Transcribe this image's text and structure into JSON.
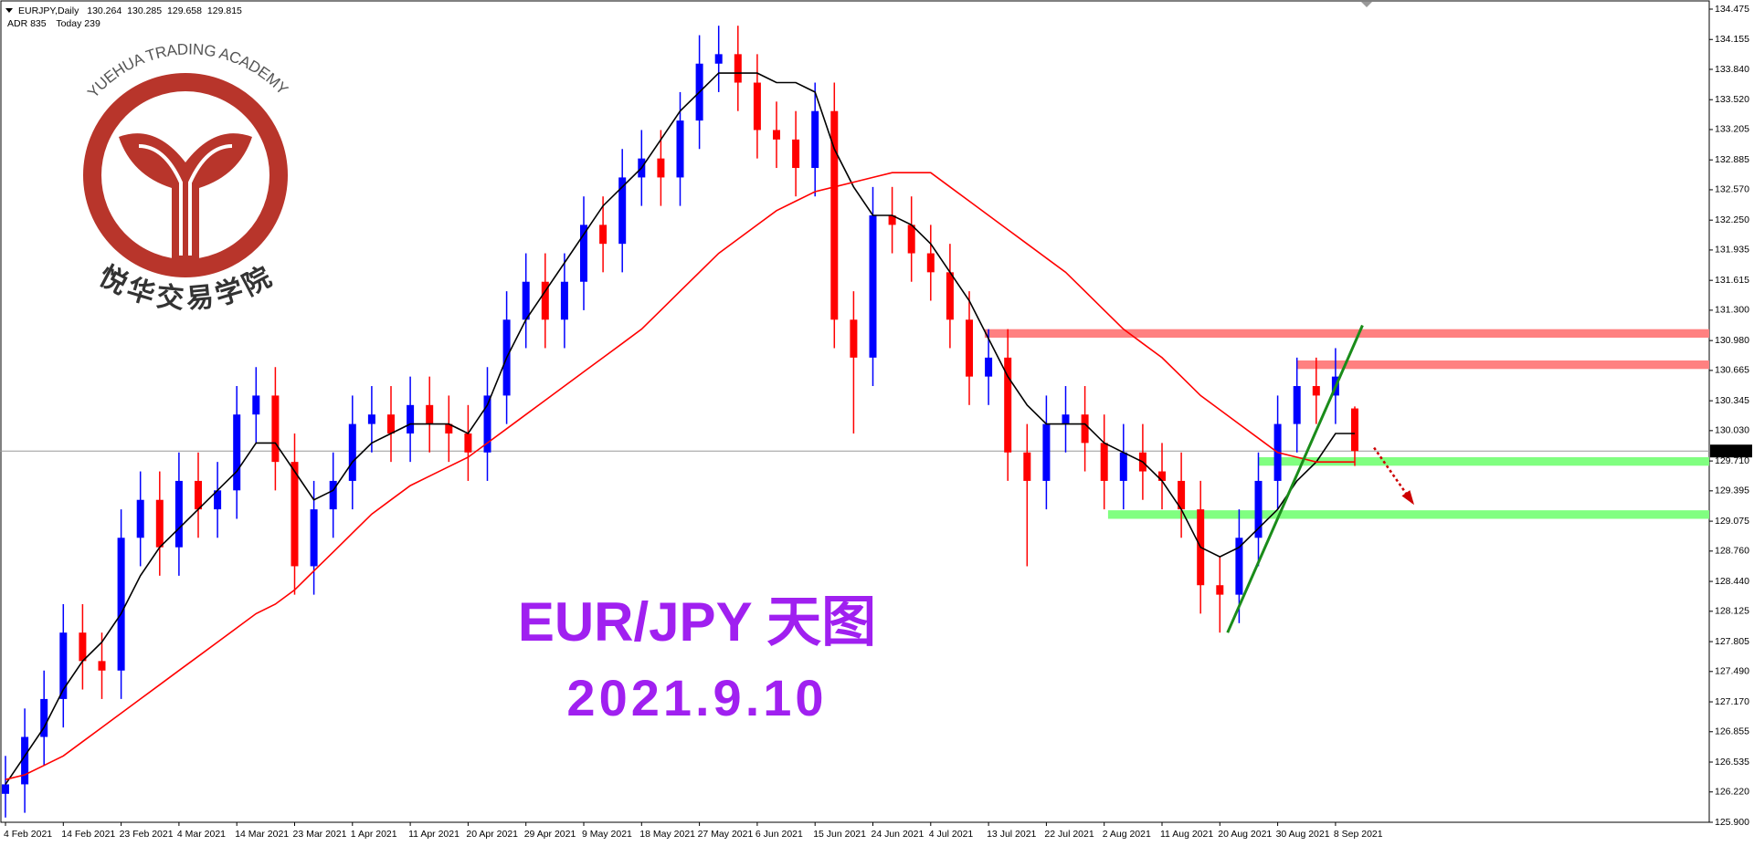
{
  "chart_data": {
    "type": "candlestick",
    "symbol": "EURJPY,Daily",
    "indicator": [
      "ADR 835",
      "Today 239"
    ],
    "title": "EUR/JPY 天图",
    "subtitle": "2021.9.10",
    "logo": {
      "text": "YUEHUA TRADING ACADEMY",
      "name": "悦华交易学院"
    },
    "up_color": "#0000ff",
    "down_color": "#ff0000",
    "categories": [
      "4 Feb 2021",
      null,
      null,
      "14 Feb 2021",
      null,
      null,
      "23 Feb 2021",
      null,
      null,
      "4 Mar 2021",
      null,
      null,
      "14 Mar 2021",
      null,
      null,
      "23 Mar 2021",
      null,
      null,
      "1 Apr 2021",
      null,
      null,
      "11 Apr 2021",
      null,
      null,
      "20 Apr 2021",
      null,
      null,
      "29 Apr 2021",
      null,
      null,
      "9 May 2021",
      null,
      null,
      "18 May 2021",
      null,
      null,
      "27 May 2021",
      null,
      null,
      "6 Jun 2021",
      null,
      null,
      "15 Jun 2021",
      null,
      null,
      "24 Jun 2021",
      null,
      null,
      "4 Jul 2021",
      null,
      null,
      "13 Jul 2021",
      null,
      null,
      "22 Jul 2021",
      null,
      null,
      "2 Aug 2021",
      null,
      null,
      "11 Aug 2021",
      null,
      null,
      "20 Aug 2021",
      null,
      null,
      "30 Aug 2021",
      null,
      null,
      "8 Sep 2021",
      null
    ],
    "open": [
      126.2,
      126.3,
      126.8,
      127.2,
      127.9,
      127.6,
      127.5,
      128.9,
      129.3,
      128.8,
      129.5,
      129.2,
      129.4,
      130.2,
      130.4,
      129.7,
      128.6,
      129.2,
      129.5,
      130.1,
      130.2,
      130.0,
      130.3,
      130.1,
      130.0,
      129.8,
      130.4,
      131.2,
      131.6,
      131.2,
      131.6,
      132.2,
      132.0,
      132.7,
      132.9,
      132.7,
      133.3,
      133.9,
      134.0,
      133.7,
      133.2,
      133.1,
      132.8,
      133.4,
      131.2,
      130.8,
      132.3,
      132.2,
      131.9,
      131.7,
      131.2,
      130.6,
      130.8,
      129.8,
      129.5,
      130.1,
      130.2,
      129.9,
      129.5,
      129.8,
      129.6,
      129.5,
      129.2,
      128.4,
      128.3,
      128.9,
      129.5,
      130.1,
      130.5,
      130.4,
      130.264
    ],
    "high": [
      126.6,
      127.1,
      127.5,
      128.2,
      128.2,
      127.9,
      129.2,
      129.6,
      129.6,
      129.8,
      129.8,
      129.7,
      130.5,
      130.7,
      130.7,
      130.0,
      129.5,
      129.8,
      130.4,
      130.5,
      130.5,
      130.6,
      130.6,
      130.4,
      130.3,
      130.7,
      131.5,
      131.9,
      131.9,
      131.9,
      132.5,
      132.5,
      133.0,
      133.2,
      133.2,
      133.6,
      134.2,
      134.3,
      134.3,
      134.0,
      133.5,
      133.4,
      133.7,
      133.7,
      131.5,
      132.6,
      132.6,
      132.5,
      132.2,
      132.0,
      131.5,
      131.1,
      131.1,
      130.1,
      130.4,
      130.5,
      130.5,
      130.2,
      130.1,
      130.1,
      129.9,
      129.8,
      129.5,
      128.7,
      129.2,
      129.8,
      130.4,
      130.8,
      130.8,
      130.9,
      130.285
    ],
    "low": [
      125.95,
      126.0,
      126.5,
      126.9,
      127.3,
      127.2,
      127.2,
      128.6,
      128.5,
      128.5,
      128.9,
      128.9,
      129.1,
      129.9,
      129.4,
      128.3,
      128.3,
      128.9,
      129.2,
      129.8,
      129.7,
      129.7,
      129.8,
      129.7,
      129.5,
      129.5,
      130.1,
      130.9,
      130.9,
      130.9,
      131.3,
      131.7,
      131.7,
      132.4,
      132.4,
      132.4,
      133.0,
      133.6,
      133.4,
      132.9,
      132.8,
      132.5,
      132.5,
      130.9,
      130.0,
      130.5,
      131.9,
      131.6,
      131.4,
      130.9,
      130.3,
      130.3,
      129.5,
      128.6,
      129.2,
      129.8,
      129.6,
      129.2,
      129.2,
      129.3,
      129.2,
      128.9,
      128.1,
      127.9,
      128.0,
      128.6,
      129.2,
      129.8,
      130.1,
      130.1,
      129.658
    ],
    "close": [
      126.3,
      126.8,
      127.2,
      127.9,
      127.6,
      127.5,
      128.9,
      129.3,
      128.8,
      129.5,
      129.2,
      129.4,
      130.2,
      130.4,
      129.7,
      128.6,
      129.2,
      129.5,
      130.1,
      130.2,
      130.0,
      130.3,
      130.1,
      130.0,
      129.8,
      130.4,
      131.2,
      131.6,
      131.2,
      131.6,
      132.2,
      132.0,
      132.7,
      132.9,
      132.7,
      133.3,
      133.9,
      134.0,
      133.7,
      133.2,
      133.1,
      132.8,
      133.4,
      131.2,
      130.8,
      132.3,
      132.2,
      131.9,
      131.7,
      131.2,
      130.6,
      130.8,
      129.8,
      129.5,
      130.1,
      130.2,
      129.9,
      129.5,
      129.8,
      129.6,
      129.5,
      129.2,
      128.4,
      128.3,
      128.9,
      129.5,
      130.1,
      130.5,
      130.4,
      130.6,
      129.815
    ],
    "lines": [
      {
        "color": "#000000",
        "values": [
          126.3,
          126.6,
          126.9,
          127.3,
          127.6,
          127.8,
          128.1,
          128.5,
          128.8,
          129.0,
          129.2,
          129.4,
          129.6,
          129.9,
          129.9,
          129.6,
          129.3,
          129.4,
          129.7,
          129.9,
          130.0,
          130.1,
          130.1,
          130.1,
          130.0,
          130.3,
          130.8,
          131.2,
          131.5,
          131.8,
          132.1,
          132.4,
          132.6,
          132.8,
          133.1,
          133.4,
          133.6,
          133.8,
          133.8,
          133.8,
          133.7,
          133.7,
          133.6,
          133.0,
          132.6,
          132.3,
          132.3,
          132.2,
          132.0,
          131.7,
          131.4,
          131.0,
          130.6,
          130.3,
          130.1,
          130.1,
          130.1,
          129.9,
          129.8,
          129.7,
          129.5,
          129.2,
          128.8,
          128.7,
          128.8,
          129.0,
          129.2,
          129.5,
          129.7,
          130.0,
          130.0
        ]
      },
      {
        "color": "#ff0000",
        "values": [
          126.35,
          126.4,
          126.5,
          126.6,
          126.75,
          126.9,
          127.05,
          127.2,
          127.35,
          127.5,
          127.65,
          127.8,
          127.95,
          128.1,
          128.2,
          128.35,
          128.55,
          128.75,
          128.95,
          129.15,
          129.3,
          129.45,
          129.55,
          129.65,
          129.75,
          129.9,
          130.05,
          130.2,
          130.35,
          130.5,
          130.65,
          130.8,
          130.95,
          131.1,
          131.3,
          131.5,
          131.7,
          131.9,
          132.05,
          132.2,
          132.35,
          132.45,
          132.55,
          132.6,
          132.65,
          132.7,
          132.75,
          132.75,
          132.75,
          132.6,
          132.45,
          132.3,
          132.15,
          132.0,
          131.85,
          131.7,
          131.5,
          131.3,
          131.1,
          130.95,
          130.8,
          130.6,
          130.4,
          130.25,
          130.1,
          129.95,
          129.8,
          129.75,
          129.7,
          129.7,
          129.7
        ]
      }
    ],
    "zones": [
      {
        "from": 50.8,
        "low": 131.01,
        "high": 131.1,
        "color": "#ff8080"
      },
      {
        "from": 67,
        "low": 130.68,
        "high": 130.77,
        "color": "#ff8080"
      },
      {
        "from": 65,
        "low": 129.66,
        "high": 129.75,
        "color": "#80ff80"
      },
      {
        "from": 57.2,
        "low": 129.1,
        "high": 129.19,
        "color": "#80ff80"
      }
    ],
    "trendline": {
      "x": [
        63.4,
        70.4
      ],
      "y": [
        127.9,
        131.14
      ],
      "color": "#1a8c1a"
    },
    "arrow": {
      "x": [
        71,
        73
      ],
      "y": [
        129.85,
        129.27
      ],
      "color": "#cc0000"
    },
    "ylim": [
      125.9,
      134.475
    ],
    "yticks": [
      {
        "value": 125.9,
        "label": "125.900"
      },
      {
        "value": 126.22,
        "label": "126.220"
      },
      {
        "value": 126.535,
        "label": "126.535"
      },
      {
        "value": 126.855,
        "label": "126.855"
      },
      {
        "value": 127.17,
        "label": "127.170"
      },
      {
        "value": 127.49,
        "label": "127.490"
      },
      {
        "value": 127.805,
        "label": "127.805"
      },
      {
        "value": 128.125,
        "label": "128.125"
      },
      {
        "value": 128.44,
        "label": "128.440"
      },
      {
        "value": 128.76,
        "label": "128.760"
      },
      {
        "value": 129.075,
        "label": "129.075"
      },
      {
        "value": 129.395,
        "label": "129.395"
      },
      {
        "value": 129.71,
        "label": "129.710"
      },
      {
        "value": 130.03,
        "label": "130.030"
      },
      {
        "value": 130.345,
        "label": "130.345"
      },
      {
        "value": 130.665,
        "label": "130.665"
      },
      {
        "value": 130.98,
        "label": "130.980"
      },
      {
        "value": 131.3,
        "label": "131.300"
      },
      {
        "value": 131.615,
        "label": "131.615"
      },
      {
        "value": 131.935,
        "label": "131.935"
      },
      {
        "value": 132.25,
        "label": "132.250"
      },
      {
        "value": 132.57,
        "label": "132.570"
      },
      {
        "value": 132.885,
        "label": "132.885"
      },
      {
        "value": 133.205,
        "label": "133.205"
      },
      {
        "value": 133.52,
        "label": "133.520"
      },
      {
        "value": 133.84,
        "label": "133.840"
      },
      {
        "value": 134.155,
        "label": "134.155"
      },
      {
        "value": 134.475,
        "label": "134.475"
      }
    ]
  }
}
